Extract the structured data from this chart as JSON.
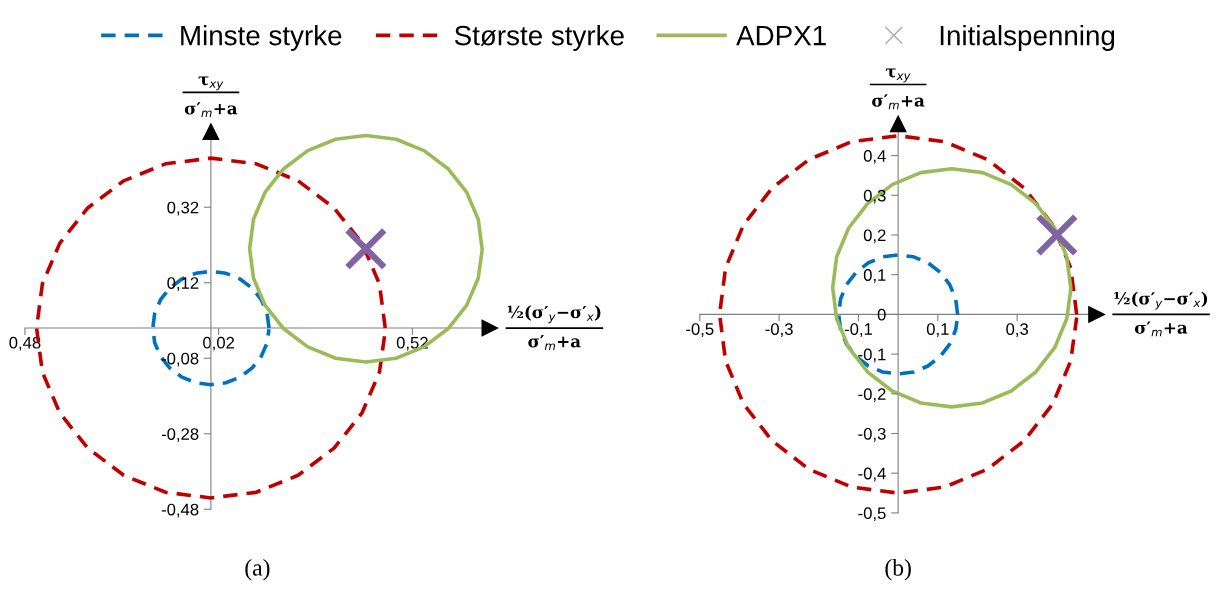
{
  "chart_data": [
    {
      "type": "line",
      "title": "(a)",
      "xlabel": "½(σ′$_{y}$−σ′$_{x}$)\nσ′$_{m}$+a",
      "ylabel": "τ$_{xy}$\nσ′$_{m}$+a",
      "xlim": [
        -0.48,
        0.72
      ],
      "ylim": [
        -0.48,
        0.52
      ],
      "xticks": [
        {
          "value": -0.48,
          "label": "0,48"
        },
        {
          "value": 0.02,
          "label": "0,02"
        },
        {
          "value": 0.52,
          "label": "0,52"
        }
      ],
      "yticks": [
        {
          "value": -0.48,
          "label": "-0,48"
        },
        {
          "value": -0.28,
          "label": "-0,28"
        },
        {
          "value": -0.08,
          "label": "-0,08"
        },
        {
          "value": 0.12,
          "label": "0,12"
        },
        {
          "value": 0.32,
          "label": "0,32"
        }
      ],
      "grid": false,
      "legend": "top",
      "series": [
        {
          "name": "Minste styrke",
          "color": "#0070c0",
          "line_style": "dashed",
          "x": [
            0.15,
            0.145,
            0.13,
            0.106,
            0.075,
            0.039,
            0,
            -0.039,
            -0.075,
            -0.106,
            -0.13,
            -0.145,
            -0.15,
            -0.145,
            -0.13,
            -0.106,
            -0.075,
            -0.039,
            0,
            0.039,
            0.075,
            0.106,
            0.13,
            0.145,
            0.15
          ],
          "values": [
            0,
            0.039,
            0.075,
            0.106,
            0.13,
            0.145,
            0.15,
            0.145,
            0.13,
            0.106,
            0.075,
            0.039,
            0,
            -0.039,
            -0.075,
            -0.106,
            -0.13,
            -0.145,
            -0.15,
            -0.145,
            -0.13,
            -0.106,
            -0.075,
            -0.039,
            -0.003
          ]
        },
        {
          "name": "Største styrke",
          "color": "#c00000",
          "line_style": "dashed",
          "x": [
            0.45,
            0.435,
            0.39,
            0.318,
            0.225,
            0.117,
            0,
            -0.117,
            -0.225,
            -0.318,
            -0.39,
            -0.435,
            -0.45,
            -0.435,
            -0.39,
            -0.318,
            -0.225,
            -0.117,
            0,
            0.117,
            0.225,
            0.318,
            0.39,
            0.435,
            0.45
          ],
          "values": [
            0,
            0.117,
            0.225,
            0.318,
            0.39,
            0.435,
            0.45,
            0.435,
            0.39,
            0.318,
            0.225,
            0.117,
            0,
            -0.117,
            -0.225,
            -0.318,
            -0.39,
            -0.435,
            -0.45,
            -0.435,
            -0.39,
            -0.318,
            -0.225,
            -0.117,
            -0.008
          ]
        },
        {
          "name": "ADPX1",
          "color": "#9bbb59",
          "line_style": "solid",
          "x": [
            0.7,
            0.69,
            0.66,
            0.612,
            0.55,
            0.478,
            0.4,
            0.322,
            0.25,
            0.188,
            0.14,
            0.11,
            0.1,
            0.11,
            0.14,
            0.188,
            0.25,
            0.322,
            0.4,
            0.478,
            0.55,
            0.612,
            0.66,
            0.69,
            0.7
          ],
          "values": [
            0.21,
            0.288,
            0.36,
            0.422,
            0.47,
            0.5,
            0.51,
            0.5,
            0.47,
            0.422,
            0.36,
            0.288,
            0.21,
            0.132,
            0.06,
            -0.002,
            -0.05,
            -0.08,
            -0.09,
            -0.08,
            -0.05,
            -0.002,
            0.06,
            0.132,
            0.205
          ]
        },
        {
          "name": "Initialspenning",
          "type": "scatter",
          "marker": "cross",
          "color": "#8064a2",
          "x": [
            0.4
          ],
          "values": [
            0.21
          ]
        }
      ]
    },
    {
      "type": "line",
      "title": "(b)",
      "xlabel": "½(σ′$_{y}$−σ′$_{x}$)\nσ′$_{m}$+a",
      "ylabel": "τ$_{xy}$\nσ′$_{m}$+a",
      "xlim": [
        -0.5,
        0.5
      ],
      "ylim": [
        -0.5,
        0.48
      ],
      "xticks": [
        {
          "value": -0.5,
          "label": "-0,5"
        },
        {
          "value": -0.3,
          "label": "-0,3"
        },
        {
          "value": -0.1,
          "label": "-0,1"
        },
        {
          "value": 0.1,
          "label": "0,1"
        },
        {
          "value": 0.3,
          "label": "0,3"
        }
      ],
      "yticks": [
        {
          "value": -0.5,
          "label": "-0,5"
        },
        {
          "value": -0.4,
          "label": "-0,4"
        },
        {
          "value": -0.3,
          "label": "-0,3"
        },
        {
          "value": -0.2,
          "label": "-0,2"
        },
        {
          "value": -0.1,
          "label": "-0,1"
        },
        0,
        {
          "value": 0.1,
          "label": "0,1"
        },
        {
          "value": 0.2,
          "label": "0,2"
        },
        {
          "value": 0.3,
          "label": "0,3"
        },
        {
          "value": 0.4,
          "label": "0,4"
        }
      ],
      "grid": false,
      "series": [
        {
          "color": "#0070c0",
          "line_style": "dashed",
          "x": [
            0.15,
            0.145,
            0.13,
            0.106,
            0.075,
            0.039,
            0,
            -0.039,
            -0.075,
            -0.106,
            -0.13,
            -0.145,
            -0.15,
            -0.145,
            -0.13,
            -0.106,
            -0.075,
            -0.039,
            0,
            0.039,
            0.075,
            0.106,
            0.13,
            0.145,
            0.15
          ],
          "values": [
            0,
            0.039,
            0.075,
            0.106,
            0.13,
            0.145,
            0.15,
            0.145,
            0.13,
            0.106,
            0.075,
            0.039,
            0,
            -0.039,
            -0.075,
            -0.106,
            -0.13,
            -0.145,
            -0.15,
            -0.145,
            -0.13,
            -0.106,
            -0.075,
            -0.039,
            -0.003
          ]
        },
        {
          "color": "#c00000",
          "line_style": "dashed",
          "x": [
            0.45,
            0.435,
            0.39,
            0.318,
            0.225,
            0.117,
            0,
            -0.117,
            -0.225,
            -0.318,
            -0.39,
            -0.435,
            -0.45,
            -0.435,
            -0.39,
            -0.318,
            -0.225,
            -0.117,
            0,
            0.117,
            0.225,
            0.318,
            0.39,
            0.435,
            0.45
          ],
          "values": [
            0,
            0.117,
            0.225,
            0.318,
            0.39,
            0.435,
            0.45,
            0.435,
            0.39,
            0.318,
            0.225,
            0.117,
            0,
            -0.117,
            -0.225,
            -0.318,
            -0.39,
            -0.435,
            -0.45,
            -0.435,
            -0.39,
            -0.318,
            -0.225,
            -0.117,
            -0.008
          ]
        },
        {
          "color": "#9bbb59",
          "line_style": "solid",
          "x": [
            0.435,
            0.425,
            0.395,
            0.347,
            0.285,
            0.213,
            0.135,
            0.057,
            -0.015,
            -0.077,
            -0.125,
            -0.155,
            -0.165,
            -0.155,
            -0.125,
            -0.077,
            -0.015,
            0.057,
            0.135,
            0.213,
            0.285,
            0.347,
            0.395,
            0.425,
            0.435
          ],
          "values": [
            0.067,
            0.145,
            0.217,
            0.279,
            0.327,
            0.357,
            0.367,
            0.357,
            0.327,
            0.279,
            0.217,
            0.145,
            0.067,
            -0.011,
            -0.083,
            -0.145,
            -0.193,
            -0.223,
            -0.233,
            -0.223,
            -0.193,
            -0.145,
            -0.083,
            -0.011,
            0.062
          ]
        },
        {
          "type": "scatter",
          "marker": "cross",
          "color": "#8064a2",
          "x": [
            0.4
          ],
          "values": [
            0.2
          ]
        }
      ]
    }
  ]
}
